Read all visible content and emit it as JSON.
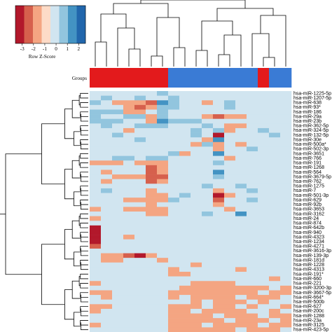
{
  "chart_data": {
    "type": "heatmap",
    "color_key": {
      "title": "Row Z-Score",
      "ticks": [
        "-3",
        "-2",
        "-1",
        "0",
        "1",
        "2"
      ],
      "colors": [
        "#b2182b",
        "#d6604d",
        "#f4a582",
        "#fddbc7",
        "#d1e5f0",
        "#92c5de",
        "#4393c3",
        "#2166ac"
      ]
    },
    "groups": {
      "label": "Groups",
      "group_colors": [
        "#e31a1c",
        "#3a7bd5"
      ],
      "column_groups": [
        0,
        0,
        0,
        0,
        0,
        0,
        0,
        1,
        1,
        1,
        1,
        1,
        1,
        1,
        1,
        0,
        1,
        1
      ]
    },
    "rows": [
      "hsa-miR-1225-5p",
      "hsa-miR-1207-5p",
      "hsa-miR-638",
      "hsa-miR-93*",
      "hsa-miR-186",
      "hsa-miR-29a",
      "hsa-miR-23b",
      "hsa-miR-362-5p",
      "hsa-miR-324-5p",
      "hsa-miR-132-5p",
      "hsa-miR-30e",
      "hsa-miR-500a*",
      "hsa-miR-502-3p",
      "hsa-miR-3651",
      "hsa-miR-766",
      "hsa-miR-191",
      "hsa-miR-1268",
      "hsa-miR-564",
      "hsa-miR-3679-5p",
      "hsa-miR-762",
      "hsa-miR-1275",
      "hsa-miR-7",
      "hsa-miR-501-3p",
      "hsa-miR-629",
      "hsa-miR-92b",
      "hsa-miR-3653",
      "hsa-miR-3162",
      "hsa-miR-24",
      "hsa-miR-874",
      "hsa-miR-642b",
      "hsa-miR-940",
      "hsa-miR-4323",
      "hsa-miR-1234",
      "hsa-miR-4271",
      "hsa-miR-3616-3p",
      "hsa-miR-139-3p",
      "hsa-miR-181d",
      "hsa-miR-1228",
      "hsa-miR-4313",
      "hsa-miR-191*",
      "hsa-miR-660",
      "hsa-miR-221",
      "hsa-miR-3200-3p",
      "hsa-miR-3667-5p",
      "hsa-miR-664*",
      "hsa-miR-500b",
      "hsa-miR-627",
      "hsa-miR-200c",
      "hsa-miR-1288",
      "hsa-miR-23a",
      "hsa-miR-3125",
      "hsa-miR-423-5p"
    ],
    "values": [
      [
        0,
        0,
        0,
        0,
        0,
        0,
        1,
        0,
        0,
        0,
        0,
        0,
        0,
        0,
        0,
        0,
        0,
        0
      ],
      [
        0,
        1,
        0,
        0,
        1,
        0,
        0,
        1,
        0,
        0,
        0,
        0,
        0,
        0,
        0,
        0,
        0,
        0
      ],
      [
        1,
        0,
        -1,
        -1,
        -1,
        -2,
        2,
        1,
        0,
        0,
        -1,
        0,
        1,
        0,
        0,
        0,
        0,
        0
      ],
      [
        0,
        0,
        0,
        -1,
        -2,
        -1,
        1,
        1,
        0,
        0,
        0,
        0,
        1,
        0,
        0,
        0,
        0,
        0
      ],
      [
        1,
        1,
        1,
        -1,
        -1,
        0,
        1,
        0,
        0,
        0,
        0,
        0,
        0,
        0,
        0,
        0,
        0,
        0
      ],
      [
        1,
        0,
        0,
        1,
        1,
        -1,
        1,
        0,
        0,
        0,
        -1,
        -2,
        -1,
        -1,
        0,
        0,
        0,
        0
      ],
      [
        1,
        1,
        1,
        0,
        0,
        -1,
        2,
        1,
        1,
        1,
        0,
        0,
        0,
        0,
        0,
        0,
        0,
        0
      ],
      [
        0,
        1,
        0,
        0,
        1,
        1,
        1,
        0,
        0,
        0,
        1,
        0,
        -1,
        -1,
        0,
        0,
        0,
        0
      ],
      [
        0,
        0,
        0,
        -1,
        0,
        0,
        0,
        0,
        0,
        1,
        0,
        1,
        -1,
        0,
        0,
        1,
        0,
        0
      ],
      [
        0,
        0,
        1,
        0,
        0,
        0,
        0,
        0,
        0,
        1,
        0,
        -3,
        0,
        0,
        0,
        0,
        1,
        0
      ],
      [
        0,
        0,
        0,
        0,
        1,
        0,
        0,
        0,
        0,
        0,
        -1,
        2,
        0,
        0,
        0,
        0,
        0,
        0
      ],
      [
        0,
        0,
        0,
        0,
        0,
        0,
        0,
        0,
        0,
        -1,
        1,
        -1,
        0,
        -1,
        0,
        0,
        0,
        0
      ],
      [
        0,
        0,
        0,
        0,
        0,
        0,
        0,
        0,
        0,
        0,
        0,
        -1,
        0,
        0,
        1,
        0,
        0,
        0
      ],
      [
        0,
        0,
        0,
        0,
        0,
        0,
        0,
        1,
        -1,
        0,
        0,
        2,
        0,
        0,
        0,
        0,
        0,
        0
      ],
      [
        0,
        0,
        1,
        1,
        0,
        1,
        1,
        0,
        0,
        0,
        0,
        0,
        -1,
        0,
        0,
        0,
        0,
        0
      ],
      [
        -1,
        -1,
        -1,
        0,
        -1,
        -1,
        -1,
        0,
        0,
        0,
        0,
        1,
        0,
        0,
        0,
        0,
        0,
        0
      ],
      [
        0,
        0,
        0,
        0,
        0,
        -2,
        -1,
        0,
        0,
        0,
        0,
        0,
        0,
        0,
        0,
        0,
        0,
        0
      ],
      [
        0,
        -1,
        0,
        0,
        0,
        -2,
        -1,
        0,
        0,
        0,
        0,
        2,
        0,
        0,
        0,
        0,
        0,
        0
      ],
      [
        0,
        0,
        -1,
        -1,
        -1,
        -2,
        -2,
        0,
        0,
        0,
        0,
        1,
        0,
        0,
        0,
        0,
        0,
        0
      ],
      [
        0,
        -1,
        0,
        0,
        0,
        -2,
        -1,
        0,
        0,
        0,
        0,
        0,
        0,
        0,
        0,
        0,
        0,
        0
      ],
      [
        0,
        0,
        0,
        0,
        0,
        0,
        0,
        0,
        0,
        0,
        1,
        0,
        0,
        1,
        0,
        0,
        0,
        0
      ],
      [
        0,
        1,
        0,
        0,
        0,
        -1,
        0,
        0,
        0,
        0,
        0,
        -1,
        0,
        0,
        1,
        0,
        0,
        0
      ],
      [
        0,
        0,
        0,
        0,
        0,
        -1,
        -1,
        0,
        1,
        0,
        0,
        -3,
        -1,
        0,
        0,
        0,
        0,
        0
      ],
      [
        0,
        0,
        0,
        -1,
        -1,
        -1,
        -1,
        1,
        0,
        0,
        0,
        -2,
        0,
        0,
        1,
        0,
        0,
        0
      ],
      [
        0,
        0,
        0,
        0,
        0,
        -1,
        0,
        0,
        0,
        0,
        0,
        -1,
        0,
        0,
        0,
        0,
        0,
        0
      ],
      [
        -1,
        0,
        0,
        -1,
        -1,
        -1,
        -1,
        0,
        0,
        0,
        0,
        0,
        -1,
        0,
        0,
        0,
        0,
        0
      ],
      [
        0,
        0,
        0,
        0,
        0,
        -1,
        -1,
        0,
        0,
        0,
        1,
        0,
        0,
        2,
        0,
        0,
        0,
        0
      ],
      [
        -1,
        0,
        0,
        0,
        0,
        0,
        0,
        0,
        0,
        0,
        0,
        0,
        0,
        0,
        0,
        0,
        0,
        0
      ],
      [
        0,
        0,
        0,
        0,
        0,
        0,
        0,
        0,
        0,
        0,
        0,
        0,
        0,
        0,
        0,
        0,
        0,
        0
      ],
      [
        -3,
        0,
        0,
        0,
        0,
        0,
        0,
        0,
        0,
        0,
        0,
        0,
        0,
        0,
        0,
        0,
        0,
        0
      ],
      [
        -3,
        0,
        0,
        0,
        0,
        0,
        0,
        0,
        0,
        0,
        0,
        0,
        0,
        0,
        0,
        0,
        0,
        0
      ],
      [
        -3,
        0,
        0,
        -1,
        0,
        0,
        0,
        0,
        0,
        0,
        0,
        0,
        0,
        0,
        0,
        0,
        0,
        0
      ],
      [
        -3,
        0,
        0,
        0,
        0,
        0,
        0,
        0,
        0,
        0,
        0,
        0,
        0,
        0,
        0,
        0,
        0,
        0
      ],
      [
        -2,
        0,
        0,
        0,
        0,
        0,
        0,
        0,
        0,
        0,
        0,
        0,
        0,
        0,
        0,
        0,
        0,
        0
      ],
      [
        0,
        0,
        0,
        0,
        0,
        0,
        0,
        0,
        0,
        0,
        0,
        0,
        0,
        0,
        0,
        0,
        0,
        0
      ],
      [
        0,
        -1,
        -1,
        -2,
        -3,
        -1,
        0,
        0,
        0,
        0,
        0,
        0,
        0,
        0,
        0,
        0,
        0,
        0
      ],
      [
        0,
        -1,
        -1,
        0,
        0,
        0,
        -1,
        0,
        0,
        0,
        0,
        0,
        0,
        0,
        0,
        0,
        0,
        0
      ],
      [
        0,
        0,
        0,
        0,
        0,
        0,
        0,
        0,
        0,
        -1,
        0,
        0,
        0,
        0,
        0,
        0,
        0,
        0
      ],
      [
        0,
        0,
        0,
        0,
        0,
        0,
        0,
        -1,
        0,
        0,
        0,
        0,
        0,
        -1,
        0,
        0,
        0,
        0
      ],
      [
        0,
        0,
        0,
        0,
        0,
        0,
        0,
        -1,
        -1,
        0,
        0,
        0,
        0,
        0,
        0,
        0,
        0,
        0
      ],
      [
        0,
        0,
        0,
        0,
        0,
        0,
        0,
        0,
        0,
        0,
        0,
        0,
        0,
        0,
        0,
        0,
        -1,
        0
      ],
      [
        -1,
        0,
        0,
        0,
        0,
        0,
        0,
        0,
        0,
        -1,
        -1,
        -1,
        -1,
        0,
        0,
        0,
        0,
        0
      ],
      [
        0,
        0,
        0,
        0,
        0,
        0,
        0,
        0,
        -1,
        -1,
        -1,
        -1,
        -1,
        -1,
        -1,
        -1,
        0,
        -1
      ],
      [
        -1,
        -1,
        0,
        0,
        0,
        0,
        0,
        -1,
        -1,
        -1,
        -1,
        -1,
        -1,
        -1,
        -1,
        0,
        -1,
        -1
      ],
      [
        0,
        -1,
        0,
        0,
        0,
        0,
        0,
        -1,
        0,
        -1,
        -1,
        -1,
        -1,
        0,
        -1,
        -1,
        -1,
        0
      ],
      [
        0,
        0,
        0,
        0,
        0,
        0,
        0,
        0,
        0,
        -1,
        0,
        -1,
        -1,
        -1,
        0,
        -1,
        0,
        0
      ],
      [
        -1,
        -1,
        0,
        0,
        0,
        0,
        0,
        -1,
        -1,
        -1,
        0,
        -1,
        -1,
        0,
        -1,
        0,
        0,
        -1
      ],
      [
        -1,
        0,
        0,
        0,
        0,
        0,
        0,
        -1,
        -1,
        0,
        -1,
        -1,
        -1,
        -1,
        0,
        0,
        -1,
        0
      ],
      [
        0,
        0,
        0,
        0,
        0,
        0,
        0,
        -1,
        -1,
        -1,
        -1,
        0,
        -1,
        -1,
        -1,
        0,
        -1,
        -1
      ],
      [
        0,
        0,
        0,
        0,
        0,
        0,
        0,
        -1,
        -1,
        -1,
        -1,
        -1,
        0,
        -1,
        -1,
        -1,
        0,
        -1
      ],
      [
        -1,
        0,
        0,
        0,
        0,
        0,
        0,
        -1,
        -1,
        -1,
        0,
        -1,
        -1,
        -1,
        -1,
        0,
        -1,
        -1
      ],
      [
        0,
        0,
        0,
        0,
        0,
        0,
        0,
        -1,
        -1,
        -1,
        -1,
        -1,
        -1,
        0,
        -1,
        -1,
        -1,
        0
      ]
    ]
  }
}
